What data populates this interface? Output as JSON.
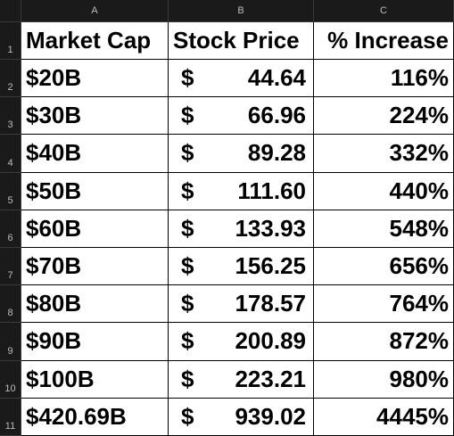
{
  "sheet": {
    "column_headers": [
      "A",
      "B",
      "C"
    ],
    "row_numbers": [
      "1",
      "2",
      "3",
      "4",
      "5",
      "6",
      "7",
      "8",
      "9",
      "10",
      "11"
    ],
    "table": {
      "header": [
        "Market Cap",
        "Stock Price",
        "% Increase"
      ],
      "rows": [
        {
          "market_cap": "$20B",
          "currency": "$",
          "stock_price": "44.64",
          "increase": "116%"
        },
        {
          "market_cap": "$30B",
          "currency": "$",
          "stock_price": "66.96",
          "increase": "224%"
        },
        {
          "market_cap": "$40B",
          "currency": "$",
          "stock_price": "89.28",
          "increase": "332%"
        },
        {
          "market_cap": "$50B",
          "currency": "$",
          "stock_price": "111.60",
          "increase": "440%"
        },
        {
          "market_cap": "$60B",
          "currency": "$",
          "stock_price": "133.93",
          "increase": "548%"
        },
        {
          "market_cap": "$70B",
          "currency": "$",
          "stock_price": "156.25",
          "increase": "656%"
        },
        {
          "market_cap": "$80B",
          "currency": "$",
          "stock_price": "178.57",
          "increase": "764%"
        },
        {
          "market_cap": "$90B",
          "currency": "$",
          "stock_price": "200.89",
          "increase": "872%"
        },
        {
          "market_cap": "$100B",
          "currency": "$",
          "stock_price": "223.21",
          "increase": "980%"
        },
        {
          "market_cap": "$420.69B",
          "currency": "$",
          "stock_price": "939.02",
          "increase": "4445%"
        }
      ]
    }
  }
}
